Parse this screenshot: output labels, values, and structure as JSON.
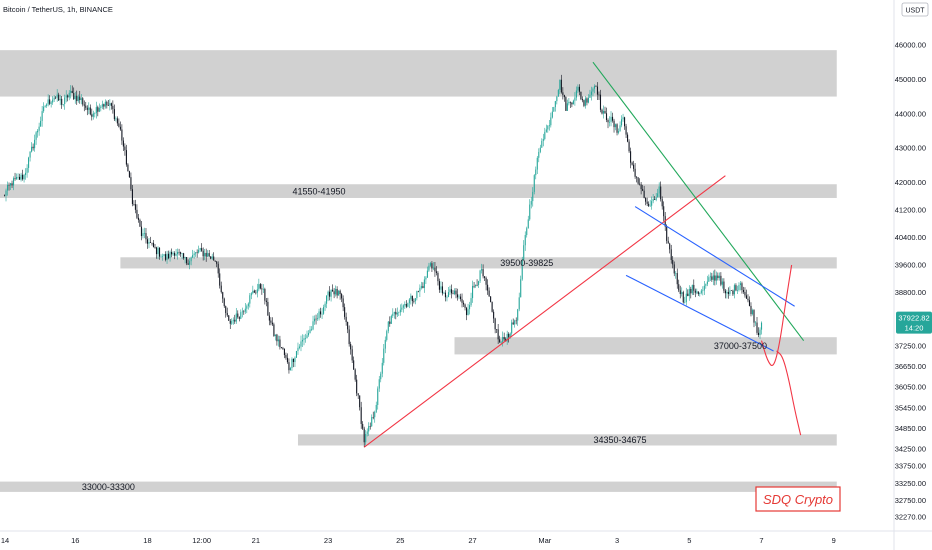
{
  "header": {
    "symbol_title": "Bitcoin / TetherUS, 1h, BINANCE",
    "currency_badge": "USDT"
  },
  "price_tag": {
    "price": "37922.82",
    "countdown": "14:20",
    "color": "#26a69a"
  },
  "watermark": {
    "text": "SDQ Crypto",
    "color": "#e53935"
  },
  "colors": {
    "up": "#26a69a",
    "down": "#131722",
    "zone": "#d1d1d1",
    "support_line": "#f23645",
    "resistance_line": "#22a85b",
    "channel": "#2962ff",
    "projection": "#f23645"
  },
  "chart_data": {
    "type": "candlestick",
    "ylim": [
      32000,
      46600
    ],
    "y_ticks": [
      46000.0,
      45000.0,
      44000.0,
      43000.0,
      42000.0,
      41200.0,
      40400.0,
      39600.0,
      38800.0,
      37922.82,
      37250.0,
      36650.0,
      36050.0,
      35450.0,
      34850.0,
      34250.0,
      33750.0,
      33250.0,
      32750.0,
      32270.0
    ],
    "y_tick_labels": [
      "46000.00",
      "45000.00",
      "44000.00",
      "43000.00",
      "42000.00",
      "41200.00",
      "40400.00",
      "39600.00",
      "38800.00",
      "",
      "37250.00",
      "36650.00",
      "36050.00",
      "35450.00",
      "34850.00",
      "34250.00",
      "33750.00",
      "33250.00",
      "32750.00",
      "32270.00"
    ],
    "x_ticks": [
      {
        "label": "14",
        "bar": 0
      },
      {
        "label": "16",
        "bar": 48
      },
      {
        "label": "18",
        "bar": 96
      },
      {
        "label": "12:00",
        "bar": 132
      },
      {
        "label": "21",
        "bar": 168
      },
      {
        "label": "23",
        "bar": 216
      },
      {
        "label": "25",
        "bar": 264
      },
      {
        "label": "27",
        "bar": 312
      },
      {
        "label": "Mar",
        "bar": 360
      },
      {
        "label": "3",
        "bar": 408
      },
      {
        "label": "5",
        "bar": 456
      },
      {
        "label": "7",
        "bar": 504
      },
      {
        "label": "9",
        "bar": 552
      }
    ],
    "bar_count": 504,
    "anchors": [
      [
        0,
        41600
      ],
      [
        6,
        42000
      ],
      [
        14,
        42200
      ],
      [
        22,
        43400
      ],
      [
        28,
        44250
      ],
      [
        34,
        44500
      ],
      [
        40,
        44300
      ],
      [
        44,
        44600
      ],
      [
        52,
        44400
      ],
      [
        58,
        44000
      ],
      [
        66,
        44300
      ],
      [
        72,
        44200
      ],
      [
        78,
        43500
      ],
      [
        82,
        42600
      ],
      [
        86,
        41500
      ],
      [
        92,
        40500
      ],
      [
        100,
        40100
      ],
      [
        108,
        39800
      ],
      [
        114,
        40000
      ],
      [
        122,
        39700
      ],
      [
        130,
        40000
      ],
      [
        136,
        39900
      ],
      [
        142,
        39700
      ],
      [
        146,
        38500
      ],
      [
        150,
        37900
      ],
      [
        158,
        38200
      ],
      [
        166,
        38800
      ],
      [
        172,
        39000
      ],
      [
        176,
        38200
      ],
      [
        180,
        37600
      ],
      [
        186,
        37100
      ],
      [
        190,
        36600
      ],
      [
        196,
        37200
      ],
      [
        204,
        37700
      ],
      [
        212,
        38300
      ],
      [
        218,
        38900
      ],
      [
        224,
        38700
      ],
      [
        228,
        37900
      ],
      [
        232,
        36800
      ],
      [
        236,
        35700
      ],
      [
        240,
        34500
      ],
      [
        244,
        34900
      ],
      [
        248,
        35600
      ],
      [
        252,
        36800
      ],
      [
        256,
        37900
      ],
      [
        262,
        38300
      ],
      [
        268,
        38500
      ],
      [
        274,
        38700
      ],
      [
        280,
        39100
      ],
      [
        284,
        39700
      ],
      [
        288,
        39300
      ],
      [
        292,
        38700
      ],
      [
        298,
        38800
      ],
      [
        304,
        38600
      ],
      [
        308,
        38200
      ],
      [
        312,
        38900
      ],
      [
        318,
        39400
      ],
      [
        322,
        38800
      ],
      [
        326,
        38000
      ],
      [
        330,
        37300
      ],
      [
        336,
        37600
      ],
      [
        342,
        38200
      ],
      [
        346,
        40100
      ],
      [
        350,
        41300
      ],
      [
        354,
        42400
      ],
      [
        358,
        43300
      ],
      [
        362,
        43600
      ],
      [
        366,
        44300
      ],
      [
        370,
        44900
      ],
      [
        374,
        44200
      ],
      [
        378,
        44400
      ],
      [
        382,
        44700
      ],
      [
        386,
        44300
      ],
      [
        390,
        44600
      ],
      [
        394,
        44900
      ],
      [
        398,
        44000
      ],
      [
        404,
        43800
      ],
      [
        408,
        43500
      ],
      [
        412,
        43900
      ],
      [
        416,
        42900
      ],
      [
        420,
        42100
      ],
      [
        424,
        41900
      ],
      [
        428,
        41300
      ],
      [
        432,
        41400
      ],
      [
        436,
        41800
      ],
      [
        440,
        40600
      ],
      [
        444,
        39800
      ],
      [
        448,
        39100
      ],
      [
        452,
        38600
      ],
      [
        458,
        38900
      ],
      [
        464,
        38800
      ],
      [
        470,
        39200
      ],
      [
        476,
        39300
      ],
      [
        480,
        38700
      ],
      [
        486,
        38900
      ],
      [
        490,
        39100
      ],
      [
        494,
        38600
      ],
      [
        498,
        38200
      ],
      [
        502,
        37600
      ],
      [
        504,
        37922.82
      ]
    ],
    "zones": [
      {
        "label": "",
        "lo": 44500,
        "hi": 45850,
        "bar_from": -10,
        "bar_to": 554
      },
      {
        "label": "41550-41950",
        "lo": 41550,
        "hi": 41950,
        "bar_from": -10,
        "bar_to": 554
      },
      {
        "label": "39500-39825",
        "lo": 39500,
        "hi": 39825,
        "bar_from": 78,
        "bar_to": 554
      },
      {
        "label": "37000-37500",
        "lo": 37000,
        "hi": 37500,
        "bar_from": 300,
        "bar_to": 554
      },
      {
        "label": "34350-34675",
        "lo": 34350,
        "hi": 34675,
        "bar_from": 196,
        "bar_to": 554
      },
      {
        "label": "33000-33300",
        "lo": 33000,
        "hi": 33300,
        "bar_from": -10,
        "bar_to": 554
      }
    ],
    "trendlines": [
      {
        "kind": "support",
        "from": [
          240,
          34300
        ],
        "to": [
          480,
          42200
        ]
      },
      {
        "kind": "resistance",
        "from": [
          392,
          45500
        ],
        "to": [
          532,
          37400
        ]
      },
      {
        "kind": "channel",
        "from": [
          420,
          41300
        ],
        "to": [
          526,
          38400
        ]
      },
      {
        "kind": "channel",
        "from": [
          414,
          39300
        ],
        "to": [
          512,
          37100
        ]
      }
    ],
    "projections": [
      [
        [
          504,
          37400
        ],
        [
          508,
          36800
        ],
        [
          512,
          36600
        ],
        [
          516,
          37300
        ],
        [
          520,
          38500
        ],
        [
          524,
          39600
        ]
      ],
      [
        [
          514,
          37100
        ],
        [
          518,
          36950
        ],
        [
          522,
          36300
        ],
        [
          526,
          35400
        ],
        [
          530,
          34650
        ]
      ]
    ]
  }
}
